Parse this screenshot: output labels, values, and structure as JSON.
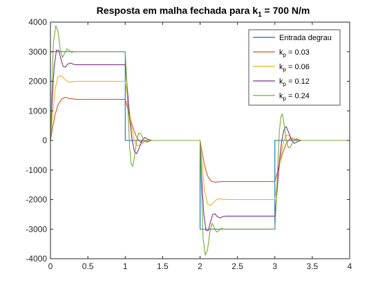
{
  "chart_data": {
    "type": "line",
    "title": {
      "main": "Resposta em malha fechada para k",
      "sub": "1",
      "suffix": " = 700 N/m"
    },
    "xlabel": "",
    "ylabel": "",
    "xlim": [
      0,
      4
    ],
    "ylim": [
      -4000,
      4000
    ],
    "xticks": [
      0,
      0.5,
      1,
      1.5,
      2,
      2.5,
      3,
      3.5,
      4
    ],
    "xtick_labels": [
      "0",
      "0.5",
      "1",
      "1.5",
      "2",
      "2.5",
      "3",
      "3.5",
      "4"
    ],
    "yticks": [
      -4000,
      -3000,
      -2000,
      -1000,
      0,
      1000,
      2000,
      3000,
      4000
    ],
    "ytick_labels": [
      "-4000",
      "-3000",
      "-2000",
      "-1000",
      "0",
      "1000",
      "2000",
      "3000",
      "4000"
    ],
    "grid": false,
    "legend_position": "top-right",
    "series": [
      {
        "name": "Entrada degrau",
        "legend_main": "Entrada degrau",
        "legend_sub": "",
        "legend_suffix": "",
        "color": "#0072BD",
        "points": [
          [
            0,
            0
          ],
          [
            0,
            3000
          ],
          [
            1,
            3000
          ],
          [
            1,
            0
          ],
          [
            2,
            0
          ],
          [
            2,
            -3000
          ],
          [
            3,
            -3000
          ],
          [
            3,
            0
          ],
          [
            4,
            0
          ]
        ]
      },
      {
        "name": "kp = 0.03",
        "legend_main": "k",
        "legend_sub": "p",
        "legend_suffix": " = 0.03",
        "color": "#D95319",
        "points": [
          [
            0,
            0
          ],
          [
            0.03,
            450
          ],
          [
            0.06,
            850
          ],
          [
            0.1,
            1200
          ],
          [
            0.15,
            1400
          ],
          [
            0.2,
            1460
          ],
          [
            0.25,
            1420
          ],
          [
            0.35,
            1390
          ],
          [
            0.5,
            1390
          ],
          [
            1,
            1390
          ],
          [
            1.05,
            900
          ],
          [
            1.1,
            450
          ],
          [
            1.15,
            120
          ],
          [
            1.2,
            -60
          ],
          [
            1.27,
            -40
          ],
          [
            1.35,
            0
          ],
          [
            2,
            0
          ],
          [
            2.03,
            -450
          ],
          [
            2.06,
            -850
          ],
          [
            2.1,
            -1200
          ],
          [
            2.15,
            -1380
          ],
          [
            2.2,
            -1410
          ],
          [
            2.3,
            -1390
          ],
          [
            2.5,
            -1390
          ],
          [
            3,
            -1390
          ],
          [
            3.05,
            -900
          ],
          [
            3.1,
            -450
          ],
          [
            3.15,
            -120
          ],
          [
            3.2,
            60
          ],
          [
            3.27,
            40
          ],
          [
            3.35,
            0
          ],
          [
            4,
            0
          ]
        ]
      },
      {
        "name": "kp = 0.06",
        "legend_main": "k",
        "legend_sub": "p",
        "legend_suffix": " = 0.06",
        "color": "#EDB120",
        "points": [
          [
            0,
            0
          ],
          [
            0.03,
            900
          ],
          [
            0.06,
            1700
          ],
          [
            0.1,
            2150
          ],
          [
            0.14,
            2200
          ],
          [
            0.18,
            2100
          ],
          [
            0.22,
            2000
          ],
          [
            0.26,
            1970
          ],
          [
            0.3,
            1990
          ],
          [
            0.4,
            2000
          ],
          [
            1,
            2000
          ],
          [
            1.04,
            1300
          ],
          [
            1.08,
            500
          ],
          [
            1.12,
            0
          ],
          [
            1.16,
            -180
          ],
          [
            1.2,
            -150
          ],
          [
            1.26,
            -30
          ],
          [
            1.32,
            0
          ],
          [
            2,
            0
          ],
          [
            2.03,
            -900
          ],
          [
            2.06,
            -1700
          ],
          [
            2.1,
            -2150
          ],
          [
            2.14,
            -2200
          ],
          [
            2.18,
            -2100
          ],
          [
            2.22,
            -2000
          ],
          [
            2.26,
            -1970
          ],
          [
            2.3,
            -1990
          ],
          [
            2.4,
            -2000
          ],
          [
            3,
            -2000
          ],
          [
            3.04,
            -1300
          ],
          [
            3.08,
            -500
          ],
          [
            3.12,
            0
          ],
          [
            3.16,
            180
          ],
          [
            3.2,
            150
          ],
          [
            3.26,
            30
          ],
          [
            3.32,
            0
          ],
          [
            4,
            0
          ]
        ]
      },
      {
        "name": "kp = 0.12",
        "legend_main": "k",
        "legend_sub": "p",
        "legend_suffix": " = 0.12",
        "color": "#7E2F8E",
        "points": [
          [
            0,
            0
          ],
          [
            0.02,
            1200
          ],
          [
            0.05,
            2500
          ],
          [
            0.08,
            3050
          ],
          [
            0.11,
            3050
          ],
          [
            0.14,
            2750
          ],
          [
            0.17,
            2500
          ],
          [
            0.2,
            2480
          ],
          [
            0.23,
            2580
          ],
          [
            0.27,
            2620
          ],
          [
            0.31,
            2570
          ],
          [
            0.35,
            2560
          ],
          [
            1,
            2560
          ],
          [
            1.03,
            1700
          ],
          [
            1.06,
            700
          ],
          [
            1.09,
            50
          ],
          [
            1.12,
            -350
          ],
          [
            1.15,
            -450
          ],
          [
            1.18,
            -300
          ],
          [
            1.22,
            -20
          ],
          [
            1.26,
            100
          ],
          [
            1.3,
            40
          ],
          [
            1.35,
            0
          ],
          [
            2,
            0
          ],
          [
            2.02,
            -1200
          ],
          [
            2.05,
            -2500
          ],
          [
            2.08,
            -3050
          ],
          [
            2.11,
            -3050
          ],
          [
            2.14,
            -2750
          ],
          [
            2.17,
            -2500
          ],
          [
            2.2,
            -2480
          ],
          [
            2.23,
            -2580
          ],
          [
            2.27,
            -2620
          ],
          [
            2.31,
            -2570
          ],
          [
            2.35,
            -2560
          ],
          [
            3,
            -2560
          ],
          [
            3.03,
            -1700
          ],
          [
            3.06,
            -700
          ],
          [
            3.09,
            -50
          ],
          [
            3.12,
            350
          ],
          [
            3.15,
            470
          ],
          [
            3.18,
            300
          ],
          [
            3.22,
            20
          ],
          [
            3.26,
            -100
          ],
          [
            3.3,
            -40
          ],
          [
            3.35,
            0
          ],
          [
            4,
            0
          ]
        ]
      },
      {
        "name": "kp = 0.24",
        "legend_main": "k",
        "legend_sub": "p",
        "legend_suffix": " = 0.24",
        "color": "#77AC30",
        "points": [
          [
            0,
            0
          ],
          [
            0.02,
            1800
          ],
          [
            0.04,
            3300
          ],
          [
            0.07,
            3880
          ],
          [
            0.1,
            3700
          ],
          [
            0.13,
            3100
          ],
          [
            0.16,
            2800
          ],
          [
            0.19,
            2950
          ],
          [
            0.22,
            3100
          ],
          [
            0.25,
            3050
          ],
          [
            0.28,
            2970
          ],
          [
            0.32,
            3000
          ],
          [
            1,
            3000
          ],
          [
            1.02,
            2000
          ],
          [
            1.04,
            800
          ],
          [
            1.06,
            -300
          ],
          [
            1.08,
            -800
          ],
          [
            1.1,
            -880
          ],
          [
            1.12,
            -600
          ],
          [
            1.15,
            -50
          ],
          [
            1.18,
            250
          ],
          [
            1.21,
            220
          ],
          [
            1.25,
            0
          ],
          [
            1.29,
            -60
          ],
          [
            1.35,
            0
          ],
          [
            2,
            0
          ],
          [
            2.02,
            -1800
          ],
          [
            2.04,
            -3300
          ],
          [
            2.07,
            -3880
          ],
          [
            2.1,
            -3700
          ],
          [
            2.13,
            -3100
          ],
          [
            2.16,
            -2800
          ],
          [
            2.19,
            -2950
          ],
          [
            2.22,
            -3100
          ],
          [
            2.25,
            -3050
          ],
          [
            2.28,
            -2970
          ],
          [
            2.32,
            -3000
          ],
          [
            3,
            -3000
          ],
          [
            3.02,
            -2000
          ],
          [
            3.04,
            -800
          ],
          [
            3.06,
            300
          ],
          [
            3.08,
            800
          ],
          [
            3.1,
            900
          ],
          [
            3.12,
            600
          ],
          [
            3.15,
            50
          ],
          [
            3.18,
            -250
          ],
          [
            3.21,
            -220
          ],
          [
            3.25,
            0
          ],
          [
            3.29,
            60
          ],
          [
            3.35,
            0
          ],
          [
            4,
            0
          ]
        ]
      }
    ]
  }
}
